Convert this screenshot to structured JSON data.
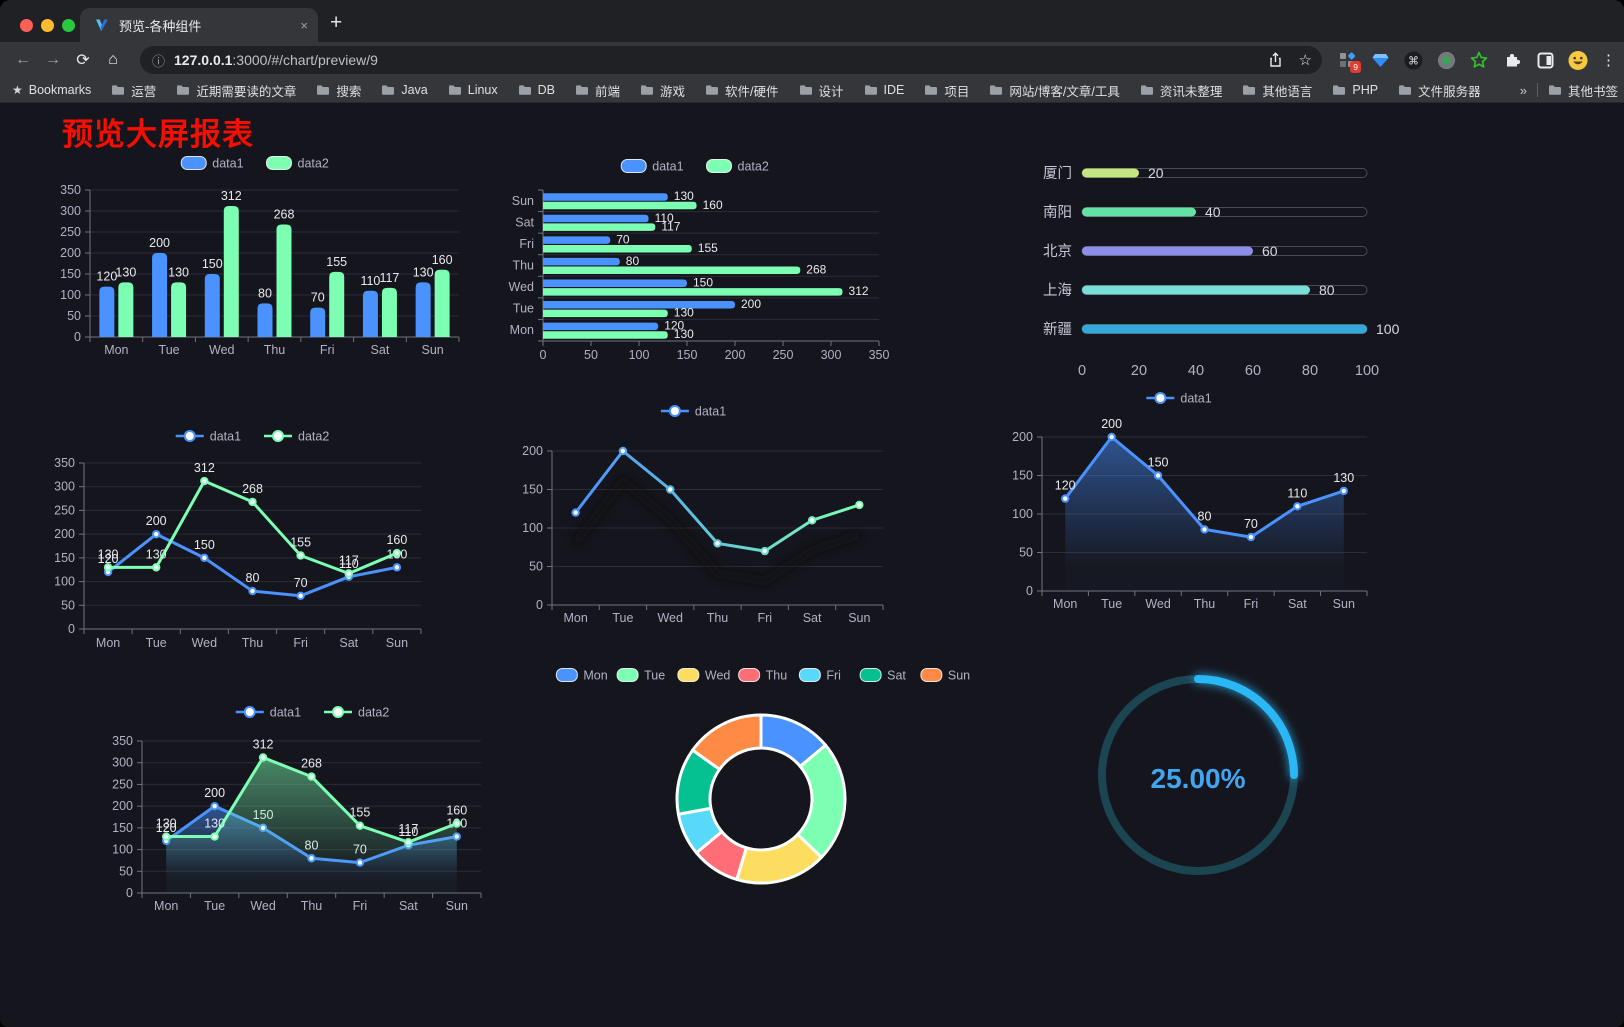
{
  "icons": {
    "back": "←",
    "forward": "→",
    "reload": "⟳",
    "home": "⌂",
    "info": "ⓘ",
    "star": "☆",
    "plus": "+",
    "close": "×",
    "menu": "⋮",
    "bookmark_star": "★",
    "command": "⌘"
  },
  "browser": {
    "tab_title": "预览-各种组件",
    "url_host": "127.0.0.1",
    "url_rest": ":3000/#/chart/preview/9",
    "extensions_badge": "9",
    "bookmarks": {
      "root_label": "Bookmarks",
      "items": [
        "运营",
        "近期需要读的文章",
        "搜索",
        "Java",
        "Linux",
        "DB",
        "前端",
        "游戏",
        "软件/硬件",
        "设计",
        "IDE",
        "项目",
        "网站/博客/文章/工具",
        "资讯未整理",
        "其他语言",
        "PHP",
        "文件服务器"
      ],
      "overflow": "»",
      "other_label": "其他书签"
    }
  },
  "page": {
    "title": "预览大屏报表",
    "title_color": "#f40f02",
    "background": "#15151d"
  },
  "chart_data": [
    {
      "id": "bar_grouped",
      "type": "bar",
      "title": "",
      "legend": [
        "data1",
        "data2"
      ],
      "legend_position": "top",
      "categories": [
        "Mon",
        "Tue",
        "Wed",
        "Thu",
        "Fri",
        "Sat",
        "Sun"
      ],
      "series": [
        {
          "name": "data1",
          "color": "#4992ff",
          "values": [
            120,
            200,
            150,
            80,
            70,
            110,
            130
          ]
        },
        {
          "name": "data2",
          "color": "#7cffb2",
          "values": [
            130,
            130,
            312,
            268,
            155,
            117,
            160
          ]
        }
      ],
      "ylim": [
        0,
        350
      ],
      "yticks": [
        0,
        50,
        100,
        150,
        200,
        250,
        300,
        350
      ],
      "grid": true,
      "value_labels": true
    },
    {
      "id": "bar_horizontal",
      "type": "bar",
      "orientation": "horizontal",
      "legend": [
        "data1",
        "data2"
      ],
      "legend_position": "top",
      "categories_bottom_to_top": [
        "Mon",
        "Tue",
        "Wed",
        "Thu",
        "Fri",
        "Sat",
        "Sun"
      ],
      "series": [
        {
          "name": "data1",
          "color": "#4992ff",
          "values": [
            120,
            200,
            150,
            80,
            70,
            110,
            130
          ]
        },
        {
          "name": "data2",
          "color": "#7cffb2",
          "values": [
            130,
            130,
            312,
            268,
            155,
            117,
            160
          ]
        }
      ],
      "xlim": [
        0,
        350
      ],
      "xticks": [
        0,
        50,
        100,
        150,
        200,
        250,
        300,
        350
      ],
      "value_labels": true
    },
    {
      "id": "progress",
      "type": "bar",
      "subtype": "progress-pills",
      "max": 100,
      "items": [
        {
          "label": "厦门",
          "value": 20,
          "color": "#c4e57f"
        },
        {
          "label": "南阳",
          "value": 40,
          "color": "#63e2a5"
        },
        {
          "label": "北京",
          "value": 60,
          "color": "#8c8ee8"
        },
        {
          "label": "上海",
          "value": 80,
          "color": "#78dfd8"
        },
        {
          "label": "新疆",
          "value": 100,
          "color": "#36a7d9"
        }
      ],
      "xticks": [
        0,
        20,
        40,
        60,
        80,
        100
      ]
    },
    {
      "id": "line_dual",
      "type": "line",
      "legend": [
        "data1",
        "data2"
      ],
      "legend_position": "top",
      "categories": [
        "Mon",
        "Tue",
        "Wed",
        "Thu",
        "Fri",
        "Sat",
        "Sun"
      ],
      "series": [
        {
          "name": "data1",
          "color": "#4992ff",
          "values": [
            120,
            200,
            150,
            80,
            70,
            110,
            130
          ]
        },
        {
          "name": "data2",
          "color": "#7cffb2",
          "values": [
            130,
            130,
            312,
            268,
            155,
            117,
            160
          ]
        }
      ],
      "ylim": [
        0,
        350
      ],
      "yticks": [
        0,
        50,
        100,
        150,
        200,
        250,
        300,
        350
      ],
      "value_labels": true
    },
    {
      "id": "line_gradient",
      "type": "line",
      "legend": [
        "data1"
      ],
      "legend_position": "top",
      "categories": [
        "Mon",
        "Tue",
        "Wed",
        "Thu",
        "Fri",
        "Sat",
        "Sun"
      ],
      "series": [
        {
          "name": "data1",
          "color": "#4992ff",
          "color_end": "#7cffb2",
          "values": [
            120,
            200,
            150,
            80,
            70,
            110,
            130
          ]
        }
      ],
      "ylim": [
        0,
        200
      ],
      "yticks": [
        0,
        50,
        100,
        150,
        200
      ],
      "value_labels": false,
      "shadow": true
    },
    {
      "id": "line_area",
      "type": "area",
      "legend": [
        "data1"
      ],
      "legend_position": "top",
      "categories": [
        "Mon",
        "Tue",
        "Wed",
        "Thu",
        "Fri",
        "Sat",
        "Sun"
      ],
      "series": [
        {
          "name": "data1",
          "color": "#4992ff",
          "area": true,
          "values": [
            120,
            200,
            150,
            80,
            70,
            110,
            130
          ]
        }
      ],
      "ylim": [
        0,
        200
      ],
      "yticks": [
        0,
        50,
        100,
        150,
        200
      ],
      "value_labels": true
    },
    {
      "id": "line_dual_area",
      "type": "area",
      "legend": [
        "data1",
        "data2"
      ],
      "legend_position": "top",
      "categories": [
        "Mon",
        "Tue",
        "Wed",
        "Thu",
        "Fri",
        "Sat",
        "Sun"
      ],
      "series": [
        {
          "name": "data1",
          "color": "#4992ff",
          "area": true,
          "values": [
            120,
            200,
            150,
            80,
            70,
            110,
            130
          ]
        },
        {
          "name": "data2",
          "color": "#7cffb2",
          "area": true,
          "values": [
            130,
            130,
            312,
            268,
            155,
            117,
            160
          ]
        }
      ],
      "ylim": [
        0,
        350
      ],
      "yticks": [
        0,
        50,
        100,
        150,
        200,
        250,
        300,
        350
      ],
      "value_labels": true
    },
    {
      "id": "donut",
      "type": "pie",
      "subtype": "donut",
      "legend_position": "top",
      "items": [
        {
          "label": "Mon",
          "value": 120,
          "color": "#4992ff"
        },
        {
          "label": "Tue",
          "value": 200,
          "color": "#7cffb2"
        },
        {
          "label": "Wed",
          "value": 150,
          "color": "#fddd60"
        },
        {
          "label": "Thu",
          "value": 80,
          "color": "#ff6e76"
        },
        {
          "label": "Fri",
          "value": 70,
          "color": "#58d9f9"
        },
        {
          "label": "Sat",
          "value": 110,
          "color": "#05c091"
        },
        {
          "label": "Sun",
          "value": 130,
          "color": "#ff8a45"
        }
      ],
      "border_color": "#ffffff",
      "start_angle": "top",
      "direction": "clockwise"
    },
    {
      "id": "gauge",
      "type": "gauge",
      "percent": 25,
      "label": "25.00%",
      "color": "#2cb7f5",
      "track_color": "#1c4552",
      "text_color": "#42a5f0"
    }
  ]
}
